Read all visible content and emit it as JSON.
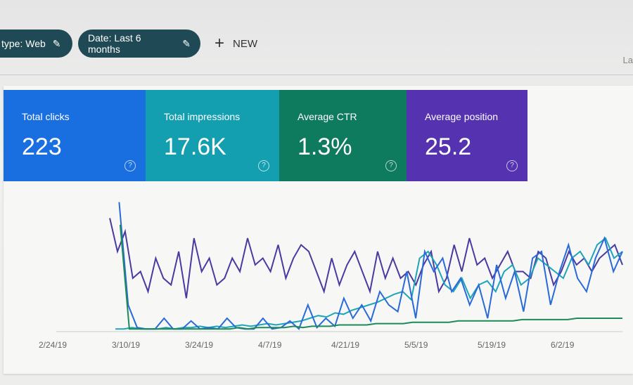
{
  "filters": {
    "chips": [
      {
        "label": "type: Web"
      },
      {
        "label": "Date: Last 6 months"
      }
    ],
    "new_label": "NEW",
    "right_truncated": "La"
  },
  "metrics": [
    {
      "label": "Total clicks",
      "value": "223",
      "color": "#1a6fe0"
    },
    {
      "label": "Total impressions",
      "value": "17.6K",
      "color": "#139fb0"
    },
    {
      "label": "Average CTR",
      "value": "1.3%",
      "color": "#0e7a5e"
    },
    {
      "label": "Average position",
      "value": "25.2",
      "color": "#5533b0"
    }
  ],
  "chart_data": {
    "type": "line",
    "x_tick_labels": [
      "2/24/19",
      "3/10/19",
      "3/24/19",
      "4/7/19",
      "4/21/19",
      "5/5/19",
      "5/19/19",
      "6/2/19"
    ],
    "grid": false,
    "series": [
      {
        "color": "#4a3aa0",
        "values": [
          null,
          null,
          null,
          null,
          null,
          null,
          null,
          85,
          60,
          75,
          40,
          45,
          30,
          55,
          40,
          35,
          60,
          25,
          70,
          45,
          55,
          35,
          40,
          55,
          45,
          70,
          50,
          55,
          45,
          65,
          40,
          55,
          65,
          60,
          45,
          30,
          55,
          35,
          50,
          60,
          45,
          30,
          60,
          40,
          55,
          40,
          45,
          35,
          50,
          60,
          30,
          40,
          65,
          45,
          70,
          50,
          55,
          40,
          50,
          60,
          45,
          45,
          40,
          60,
          55,
          35,
          45,
          60,
          50,
          55,
          45,
          55,
          60,
          65,
          50
        ]
      },
      {
        "color": "#1da5b8",
        "values": [
          null,
          null,
          null,
          null,
          null,
          null,
          null,
          2,
          2,
          3,
          2,
          2,
          2,
          3,
          2,
          3,
          3,
          4,
          3,
          4,
          3,
          4,
          5,
          4,
          5,
          6,
          5,
          6,
          7,
          8,
          10,
          12,
          11,
          14,
          13,
          16,
          18,
          20,
          22,
          25,
          28,
          30,
          24,
          55,
          60,
          50,
          35,
          30,
          40,
          25,
          35,
          38,
          30,
          45,
          50,
          35,
          40,
          55,
          50,
          45,
          40,
          55,
          60,
          50,
          65,
          70,
          55,
          60
        ]
      },
      {
        "color": "#2a6ad8",
        "values": [
          null,
          null,
          null,
          null,
          null,
          null,
          null,
          97,
          20,
          3,
          2,
          2,
          10,
          2,
          2,
          8,
          2,
          3,
          2,
          10,
          3,
          2,
          2,
          10,
          2,
          3,
          8,
          2,
          20,
          3,
          10,
          4,
          25,
          10,
          20,
          8,
          30,
          20,
          15,
          45,
          10,
          60,
          45,
          55,
          30,
          40,
          20,
          35,
          10,
          50,
          25,
          45,
          15,
          55,
          60,
          20,
          45,
          65,
          40,
          30,
          55,
          70,
          45,
          60
        ]
      },
      {
        "color": "#1d8a5a",
        "values": [
          null,
          null,
          null,
          null,
          null,
          null,
          null,
          80,
          2,
          2,
          2,
          2,
          2,
          2,
          2,
          2,
          2,
          2,
          2,
          2,
          3,
          2,
          3,
          3,
          3,
          3,
          4,
          3,
          4,
          4,
          4,
          5,
          5,
          5,
          5,
          6,
          6,
          6,
          6,
          7,
          7,
          7,
          7,
          7,
          8,
          8,
          8,
          8,
          8,
          8,
          8,
          9,
          9,
          9,
          9,
          9,
          9,
          10,
          10,
          10,
          10,
          10,
          10
        ]
      }
    ]
  }
}
